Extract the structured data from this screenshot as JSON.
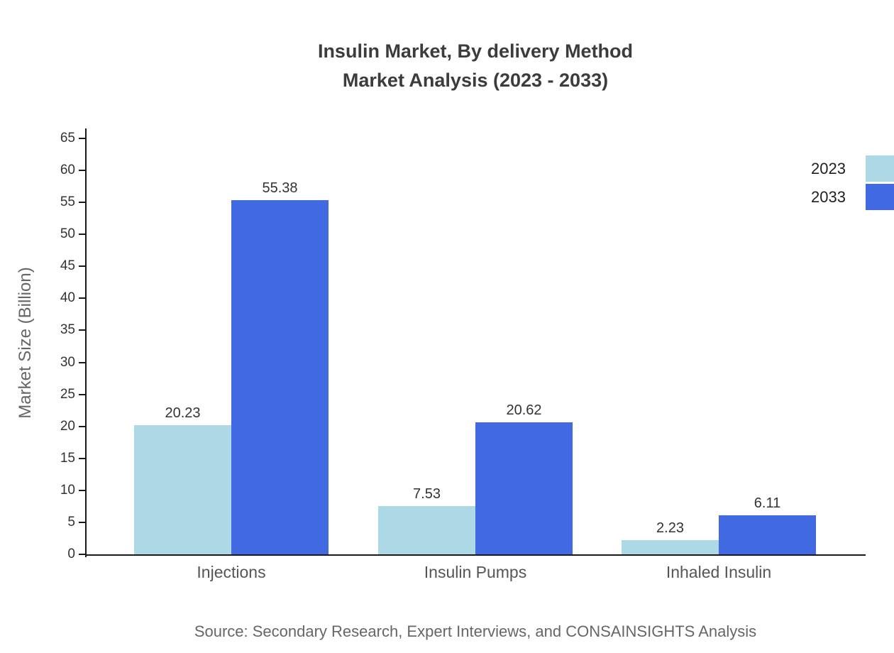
{
  "title": {
    "line1": "Insulin Market, By delivery Method",
    "line2": "Market Analysis (2023 - 2033)"
  },
  "source": "Source: Secondary Research, Expert Interviews, and CONSAINSIGHTS Analysis",
  "chart_data": {
    "type": "bar",
    "categories": [
      "Injections",
      "Insulin Pumps",
      "Inhaled Insulin"
    ],
    "series": [
      {
        "name": "2023",
        "color": "#add8e6",
        "values": [
          20.23,
          7.53,
          2.23
        ]
      },
      {
        "name": "2033",
        "color": "#4169e1",
        "values": [
          55.38,
          20.62,
          6.11
        ]
      }
    ],
    "title": "Insulin Market, By delivery Method Market Analysis (2023 - 2033)",
    "xlabel": "",
    "ylabel": "Market Size (Billion)",
    "ylim": [
      0,
      65
    ],
    "ytick_step": 5,
    "grid": false,
    "legend_position": "top-right"
  }
}
